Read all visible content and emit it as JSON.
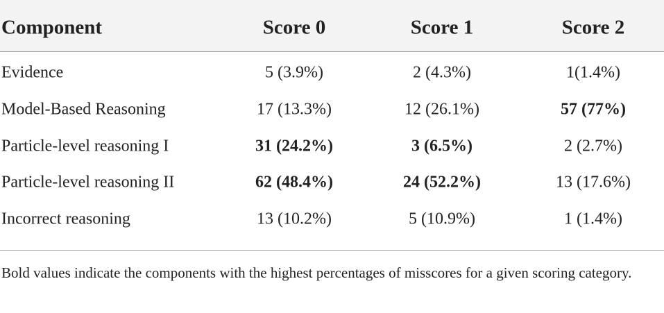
{
  "table": {
    "header": [
      "Component",
      "Score 0",
      "Score 1",
      "Score 2"
    ],
    "rows": [
      [
        "Evidence",
        "5 (3.9%)",
        "2 (4.3%)",
        "1(1.4%)"
      ],
      [
        "Model-Based Reasoning",
        "17 (13.3%)",
        "12 (26.1%)",
        "57 (77%)"
      ],
      [
        "Particle-level reasoning I",
        "31 (24.2%)",
        "3 (6.5%)",
        "2 (2.7%)"
      ],
      [
        "Particle-level reasoning II",
        "62 (48.4%)",
        "24 (52.2%)",
        "13 (17.6%)"
      ],
      [
        "Incorrect reasoning",
        "13 (10.2%)",
        "5 (10.9%)",
        "1 (1.4%)"
      ]
    ],
    "bold": [
      [
        false,
        false,
        false,
        false
      ],
      [
        false,
        false,
        false,
        true
      ],
      [
        false,
        true,
        true,
        false
      ],
      [
        false,
        true,
        true,
        false
      ],
      [
        false,
        false,
        false,
        false
      ]
    ],
    "footnote": "Bold values indicate the components with the highest percentages of misscores for a given scoring category."
  }
}
